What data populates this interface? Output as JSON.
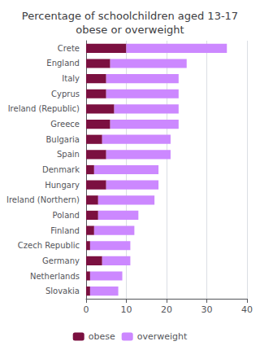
{
  "chart_data": {
    "type": "bar",
    "orientation": "horizontal",
    "stacked": true,
    "title": "Percentage of schoolchildren aged 13-17\nobese or overweight",
    "categories": [
      "Crete",
      "England",
      "Italy",
      "Cyprus",
      "Ireland (Republic)",
      "Greece",
      "Bulgaria",
      "Spain",
      "Denmark",
      "Hungary",
      "Ireland (Northern)",
      "Poland",
      "Finland",
      "Czech Republic",
      "Germany",
      "Netherlands",
      "Slovakia"
    ],
    "series": [
      {
        "name": "obese",
        "color": "#7B1040",
        "values": [
          10,
          6,
          5,
          5,
          7,
          6,
          4,
          5,
          2,
          5,
          3,
          3,
          2,
          1,
          4,
          1,
          1
        ]
      },
      {
        "name": "overweight",
        "color": "#CC88FF",
        "values": [
          25,
          19,
          18,
          18,
          16,
          17,
          17,
          16,
          16,
          13,
          14,
          10,
          10,
          10,
          7,
          8,
          7
        ]
      }
    ],
    "xlim": [
      0,
      40
    ],
    "xticks": [
      0,
      10,
      20,
      30,
      40
    ],
    "grid": true,
    "legend": "bottom"
  }
}
